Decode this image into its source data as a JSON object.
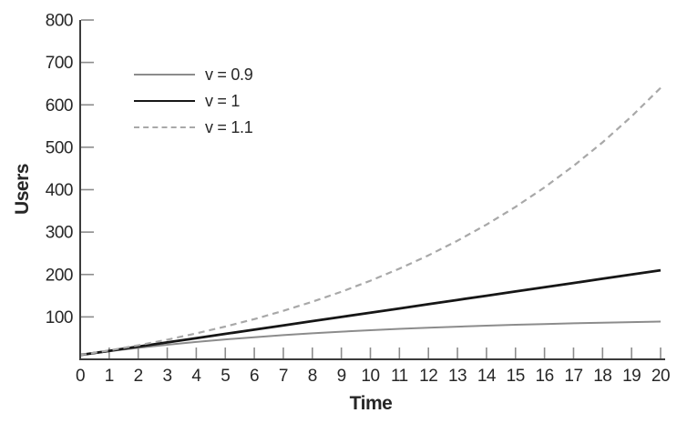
{
  "chart_data": {
    "type": "line",
    "title": "",
    "xlabel": "Time",
    "ylabel": "Users",
    "xlim": [
      0,
      20
    ],
    "ylim": [
      0,
      800
    ],
    "grid": false,
    "legend_position": "inside-top-left",
    "x_ticks": [
      0,
      1,
      2,
      3,
      4,
      5,
      6,
      7,
      8,
      9,
      10,
      11,
      12,
      13,
      14,
      15,
      16,
      17,
      18,
      19,
      20
    ],
    "y_ticks": [
      100,
      200,
      300,
      400,
      500,
      600,
      700,
      800
    ],
    "x": [
      0,
      1,
      2,
      3,
      4,
      5,
      6,
      7,
      8,
      9,
      10,
      11,
      12,
      13,
      14,
      15,
      16,
      17,
      18,
      19,
      20
    ],
    "series": [
      {
        "name": "v = 0.9",
        "line_style": "solid",
        "color": "#8c8c8c",
        "width": 2,
        "values": [
          10,
          19,
          27.1,
          34.4,
          41,
          46.9,
          52.2,
          57,
          61.3,
          65.1,
          68.6,
          71.8,
          74.6,
          77.1,
          79.4,
          81.5,
          83.3,
          85,
          86.5,
          87.8,
          89.1
        ]
      },
      {
        "name": "v = 1",
        "line_style": "solid",
        "color": "#161616",
        "width": 2.8,
        "values": [
          10,
          20,
          30,
          40,
          50,
          60,
          70,
          80,
          90,
          100,
          110,
          120,
          130,
          140,
          150,
          160,
          170,
          180,
          190,
          200,
          210
        ]
      },
      {
        "name": "v = 1.1",
        "line_style": "dashed",
        "color": "#a8a8a8",
        "width": 2.2,
        "values": [
          10,
          21,
          33.1,
          46.4,
          61.1,
          77.2,
          94.9,
          114.4,
          135.8,
          159.4,
          185.3,
          213.8,
          245.2,
          279.7,
          317.7,
          359.5,
          405.4,
          456,
          511.6,
          572.7,
          640
        ]
      }
    ]
  },
  "colors": {
    "background": "#ffffff",
    "axis": "#3c3c3c",
    "tick": "#8c8c8c",
    "text": "#272727"
  }
}
